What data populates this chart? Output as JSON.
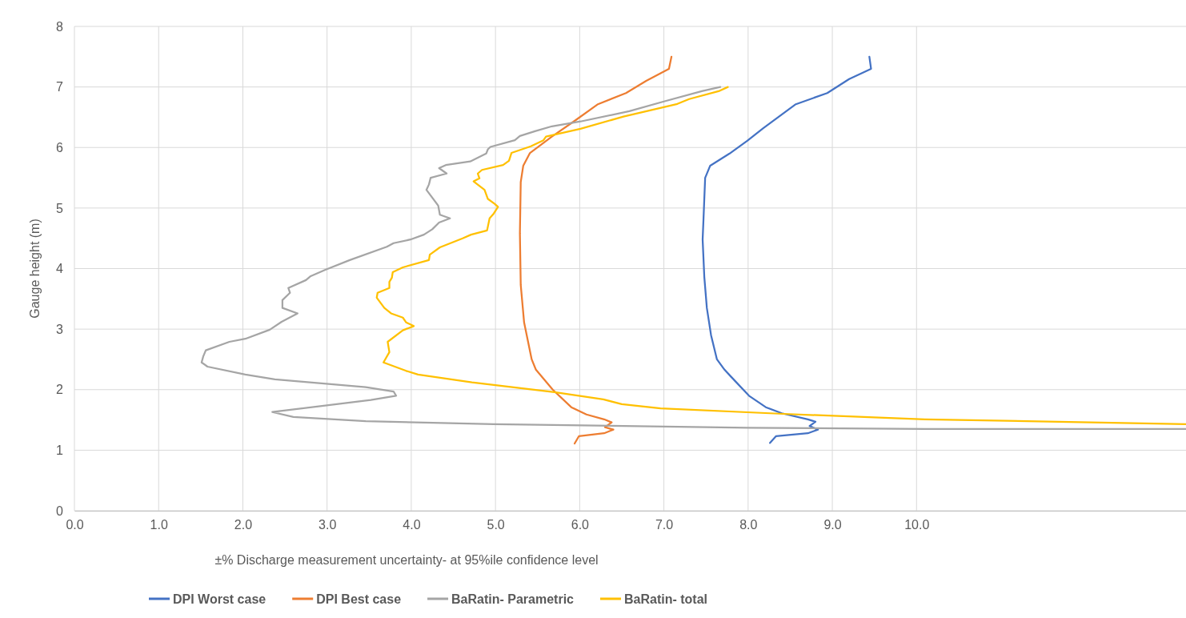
{
  "chart_data": {
    "type": "line",
    "xlabel": "±% Discharge measurement uncertainty- at 95%ile confidence level",
    "ylabel": "Gauge height (m)",
    "xlim": [
      0,
      13.2
    ],
    "ylim": [
      0,
      8
    ],
    "xticks": [
      {
        "value": 0,
        "label": "0.0"
      },
      {
        "value": 1,
        "label": "1.0"
      },
      {
        "value": 2,
        "label": "2.0"
      },
      {
        "value": 3,
        "label": "3.0"
      },
      {
        "value": 4,
        "label": "4.0"
      },
      {
        "value": 5,
        "label": "5.0"
      },
      {
        "value": 6,
        "label": "6.0"
      },
      {
        "value": 7,
        "label": "7.0"
      },
      {
        "value": 8,
        "label": "8.0"
      },
      {
        "value": 9,
        "label": "9.0"
      },
      {
        "value": 10,
        "label": "10.0"
      }
    ],
    "yticks": [
      0,
      1,
      2,
      3,
      4,
      5,
      6,
      7,
      8
    ],
    "grid": true,
    "legend": "bottom",
    "marker": "none",
    "line_style": "solid",
    "series": [
      {
        "name": "DPI Worst case",
        "color": "#4472c4",
        "x": [
          9.44,
          9.46,
          9.2,
          8.94,
          8.56,
          8.18,
          7.99,
          7.78,
          7.55,
          7.49,
          7.47,
          7.46,
          7.48,
          7.51,
          7.56,
          7.63,
          7.72,
          7.8,
          8.01,
          8.21,
          8.4,
          8.71,
          8.8,
          8.73,
          8.83,
          8.71,
          8.33,
          8.26
        ],
        "values": [
          7.5,
          7.3,
          7.13,
          6.9,
          6.71,
          6.32,
          6.11,
          5.9,
          5.7,
          5.5,
          4.81,
          4.48,
          3.86,
          3.35,
          2.9,
          2.5,
          2.33,
          2.21,
          1.9,
          1.71,
          1.61,
          1.51,
          1.47,
          1.4,
          1.34,
          1.28,
          1.23,
          1.12
        ]
      },
      {
        "name": "DPI Best case",
        "color": "#ed7d31",
        "x": [
          7.09,
          7.06,
          6.79,
          6.55,
          6.21,
          5.94,
          5.67,
          5.41,
          5.33,
          5.3,
          5.29,
          5.3,
          5.34,
          5.43,
          5.48,
          5.68,
          5.9,
          6.08,
          6.29,
          6.38,
          6.3,
          6.4,
          6.29,
          5.99,
          5.94
        ],
        "values": [
          7.5,
          7.3,
          7.1,
          6.9,
          6.71,
          6.44,
          6.18,
          5.91,
          5.7,
          5.43,
          4.58,
          3.73,
          3.11,
          2.5,
          2.33,
          2.0,
          1.71,
          1.59,
          1.51,
          1.46,
          1.38,
          1.34,
          1.28,
          1.23,
          1.11
        ]
      },
      {
        "name": "BaRatin- Parametric",
        "color": "#a5a5a5",
        "x": [
          7.67,
          7.45,
          7.0,
          6.59,
          6.01,
          5.67,
          5.47,
          5.29,
          5.23,
          4.94,
          4.91,
          4.89,
          4.7,
          4.41,
          4.33,
          4.42,
          4.23,
          4.21,
          4.18,
          4.32,
          4.34,
          4.46,
          4.33,
          4.25,
          4.15,
          3.99,
          3.79,
          3.71,
          3.27,
          2.98,
          2.8,
          2.75,
          2.54,
          2.56,
          2.47,
          2.47,
          2.65,
          2.46,
          2.32,
          2.03,
          1.84,
          1.56,
          1.53,
          1.51,
          1.58,
          2.03,
          2.38,
          3.46,
          3.79,
          3.82,
          3.52,
          2.35,
          2.6,
          3.46,
          4.98,
          8.0,
          10.1,
          13.2
        ],
        "values": [
          7.0,
          6.93,
          6.76,
          6.6,
          6.43,
          6.35,
          6.27,
          6.19,
          6.12,
          6.01,
          5.97,
          5.9,
          5.77,
          5.71,
          5.66,
          5.57,
          5.5,
          5.39,
          5.3,
          5.04,
          4.89,
          4.83,
          4.76,
          4.65,
          4.56,
          4.48,
          4.42,
          4.36,
          4.14,
          3.98,
          3.87,
          3.81,
          3.68,
          3.6,
          3.48,
          3.35,
          3.26,
          3.12,
          2.99,
          2.84,
          2.79,
          2.65,
          2.55,
          2.45,
          2.38,
          2.25,
          2.17,
          2.04,
          1.97,
          1.9,
          1.83,
          1.63,
          1.55,
          1.48,
          1.43,
          1.37,
          1.35,
          1.35
        ]
      },
      {
        "name": "BaRatin- total",
        "color": "#ffc000",
        "x": [
          7.76,
          7.65,
          7.3,
          7.16,
          6.52,
          6.01,
          5.6,
          5.57,
          5.42,
          5.19,
          5.16,
          5.09,
          4.84,
          4.79,
          4.81,
          4.74,
          4.87,
          4.91,
          4.99,
          5.03,
          4.98,
          4.93,
          4.9,
          4.71,
          4.61,
          4.34,
          4.22,
          4.21,
          3.9,
          3.78,
          3.77,
          3.74,
          3.74,
          3.6,
          3.59,
          3.68,
          3.76,
          3.9,
          3.94,
          4.03,
          3.9,
          3.72,
          3.74,
          3.67,
          3.94,
          4.08,
          4.72,
          5.7,
          6.28,
          6.5,
          6.96,
          8.42,
          10.1,
          13.2
        ],
        "values": [
          7.0,
          6.93,
          6.8,
          6.72,
          6.51,
          6.31,
          6.18,
          6.12,
          6.02,
          5.91,
          5.78,
          5.71,
          5.63,
          5.57,
          5.49,
          5.44,
          5.3,
          5.15,
          5.07,
          5.02,
          4.91,
          4.83,
          4.63,
          4.56,
          4.5,
          4.35,
          4.23,
          4.14,
          4.02,
          3.94,
          3.85,
          3.78,
          3.68,
          3.6,
          3.52,
          3.35,
          3.26,
          3.19,
          3.11,
          3.05,
          2.98,
          2.79,
          2.62,
          2.45,
          2.31,
          2.25,
          2.12,
          1.96,
          1.84,
          1.76,
          1.69,
          1.6,
          1.51,
          1.43
        ]
      }
    ]
  }
}
